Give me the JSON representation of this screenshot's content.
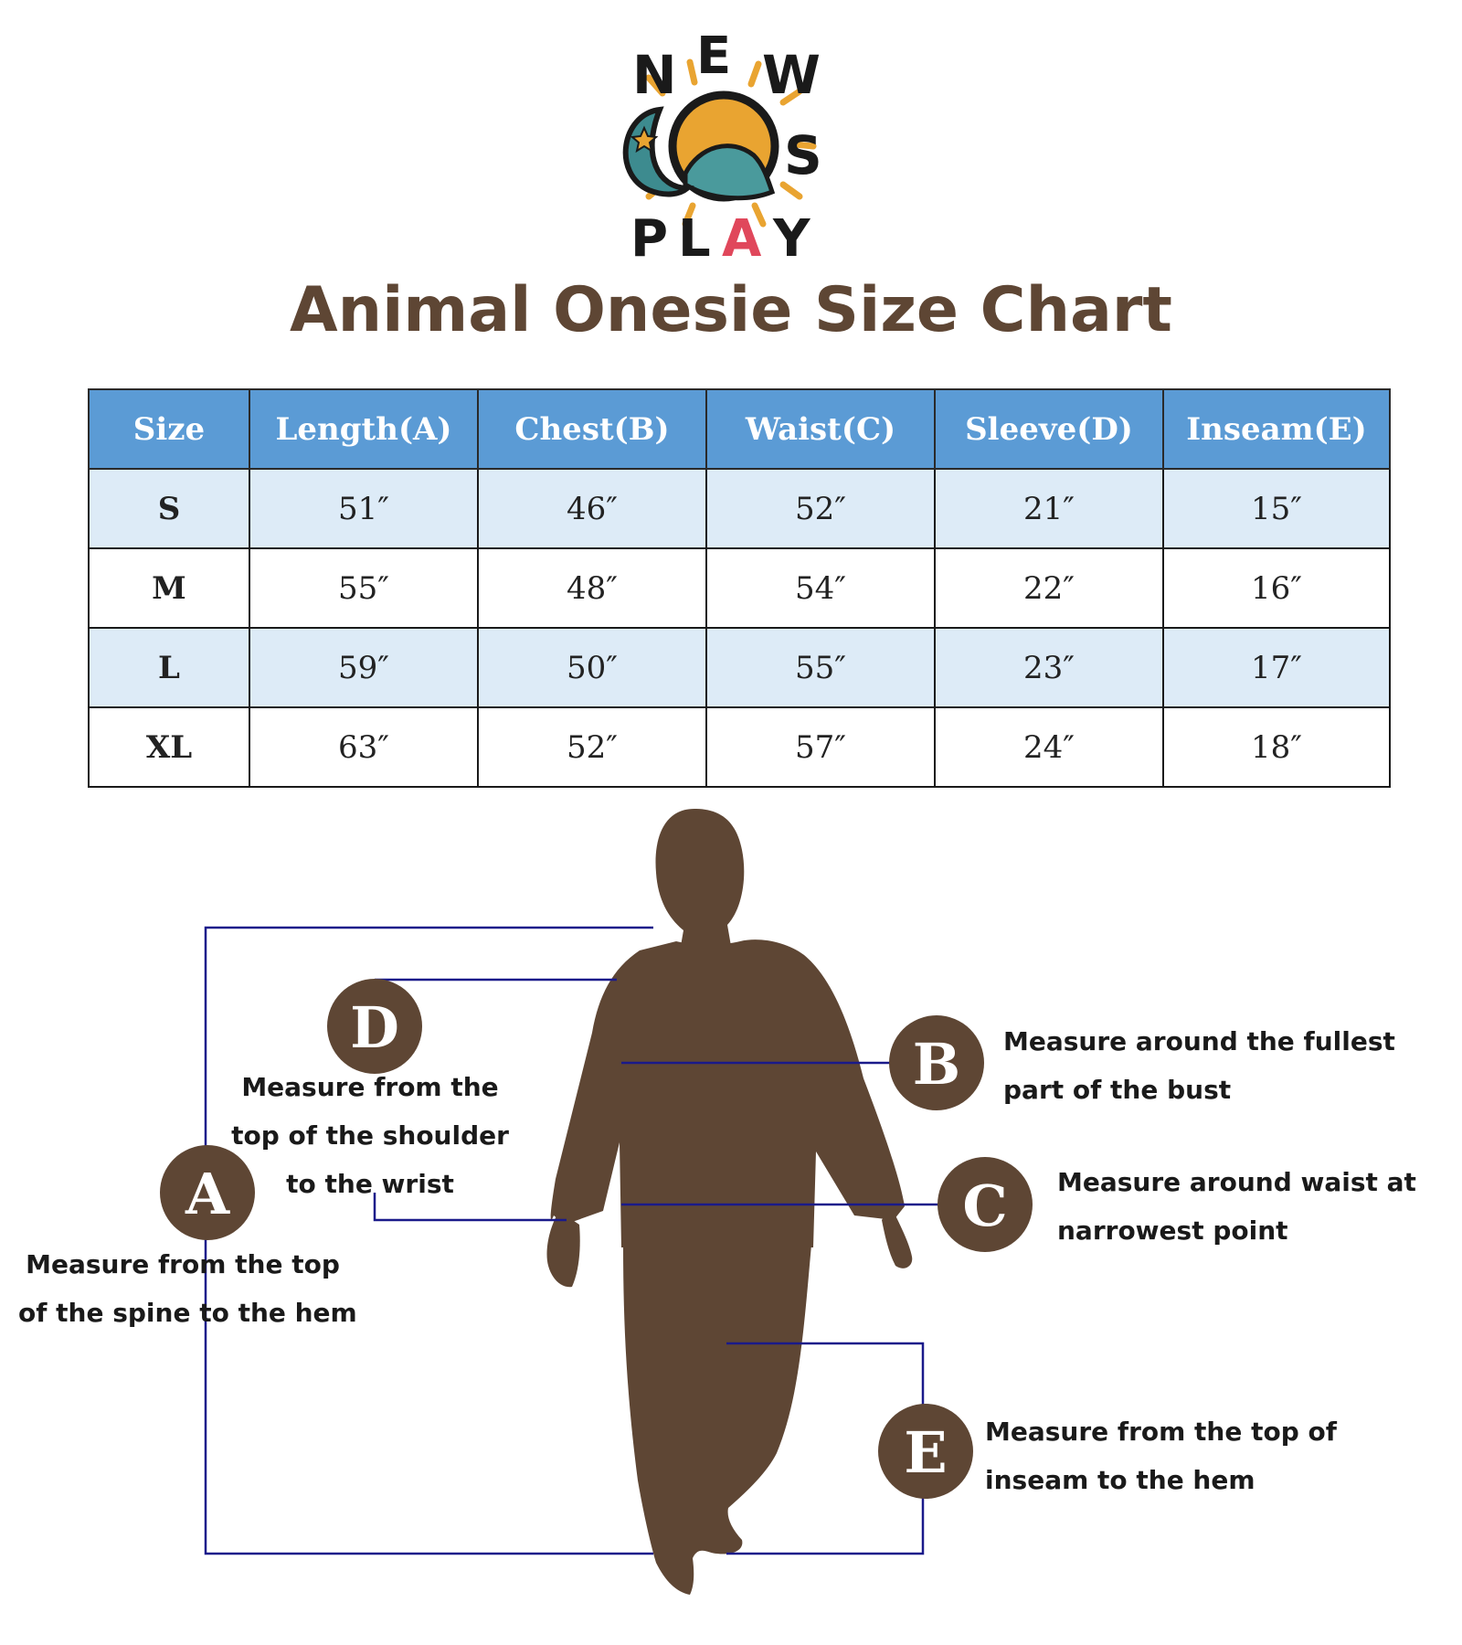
{
  "brand": {
    "logo_letters": [
      "N",
      "E",
      "W",
      "C",
      "O",
      "S",
      "P",
      "L",
      "A",
      "Y"
    ],
    "logo_colors": {
      "sun": "#e9a431",
      "moon": "#3d8b8f",
      "wave": "#4a9a9c",
      "a_letter": "#e0475b",
      "dark": "#1a1a1a"
    }
  },
  "title": "Animal Onesie Size Chart",
  "colors": {
    "title": "#5e4634",
    "header_bg": "#5b9bd5",
    "row_alt": "#ddebf7",
    "figure": "#5e4634",
    "guide_line": "#1a1a8a"
  },
  "size_table": {
    "headers": [
      "Size",
      "Length(A)",
      "Chest(B)",
      "Waist(C)",
      "Sleeve(D)",
      "Inseam(E)"
    ],
    "rows": [
      [
        "S",
        "51″",
        "46″",
        "52″",
        "21″",
        "15″"
      ],
      [
        "M",
        "55″",
        "48″",
        "54″",
        "22″",
        "16″"
      ],
      [
        "L",
        "59″",
        "50″",
        "55″",
        "23″",
        "17″"
      ],
      [
        "XL",
        "63″",
        "52″",
        "57″",
        "24″",
        "18″"
      ]
    ]
  },
  "measurements": {
    "a": {
      "letter": "A",
      "lines": [
        "Measure from the top",
        "of the spine to the hem"
      ]
    },
    "b": {
      "letter": "B",
      "lines": [
        "Measure around the fullest",
        "part of the bust"
      ]
    },
    "c": {
      "letter": "C",
      "lines": [
        "Measure around waist at",
        "narrowest point"
      ]
    },
    "d": {
      "letter": "D",
      "lines": [
        "Measure from the",
        "top of the shoulder",
        "to the wrist"
      ]
    },
    "e": {
      "letter": "E",
      "lines": [
        "Measure from the top of",
        "inseam to the hem"
      ]
    }
  }
}
